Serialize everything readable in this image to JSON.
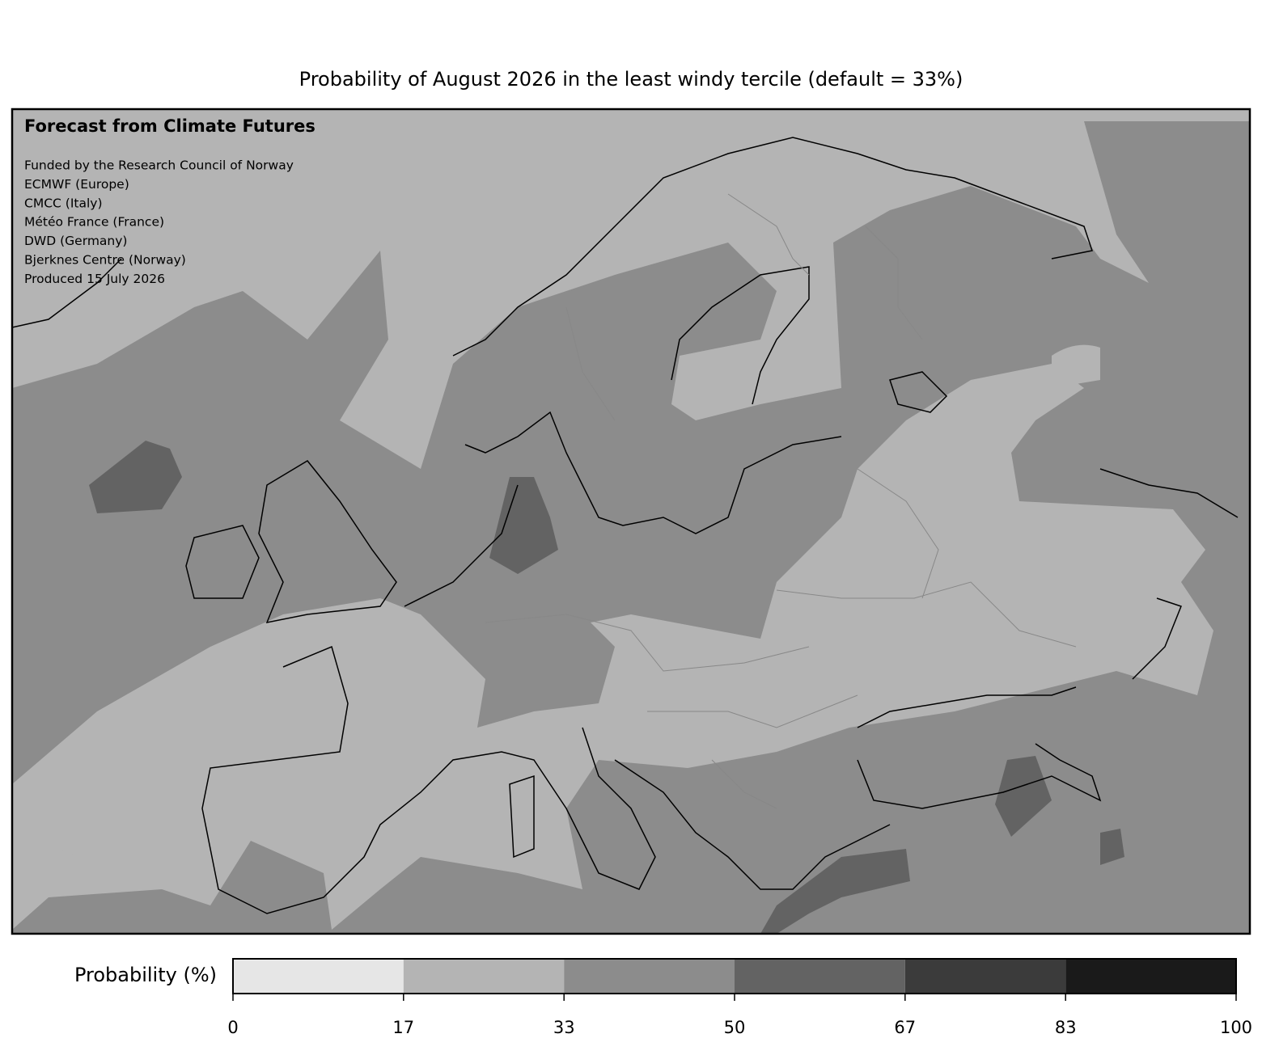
{
  "title": "Probability of August 2026 in the least windy tercile (default = 33%)",
  "annotations": {
    "heading": "Forecast from Climate Futures",
    "lines": [
      "Funded by the Research Council of Norway",
      "ECMWF (Europe)",
      "CMCC (Italy)",
      "Météo France (France)",
      "DWD (Germany)",
      "Bjerknes Centre (Norway)",
      "Produced 15 July 2026"
    ]
  },
  "colorbar": {
    "label": "Probability (%)",
    "lim": [
      0,
      100
    ],
    "ticks": [
      0,
      17,
      33,
      50,
      67,
      83,
      100
    ],
    "colors": [
      "#e6e6e6",
      "#b4b4b4",
      "#8c8c8c",
      "#636363",
      "#3b3b3b",
      "#1a1a1a"
    ]
  }
}
